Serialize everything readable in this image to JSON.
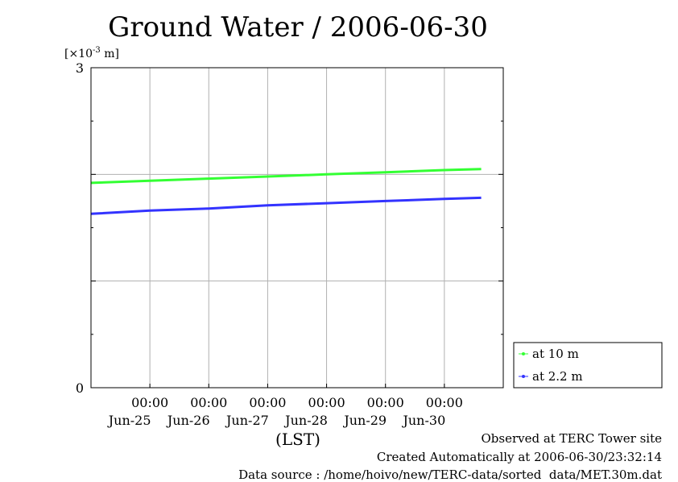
{
  "chart_data": {
    "type": "line",
    "title": "Ground Water / 2006-06-30",
    "unit_label": "[×10-3 m]",
    "unit_prefix": "[×10",
    "unit_exp": "-3",
    "unit_suffix": " m]",
    "xlabel": "(LST)",
    "x_range": [
      "2006-06-24T00:00",
      "2006-07-01T00:00"
    ],
    "ylim": [
      0,
      3
    ],
    "y_ticks": [
      "0",
      "3"
    ],
    "y_gridlines": [
      1,
      2
    ],
    "x_ticks": [
      {
        "time": "2006-06-25T00:00",
        "label_time": "00:00",
        "label_date": "Jun-25"
      },
      {
        "time": "2006-06-26T00:00",
        "label_time": "00:00",
        "label_date": "Jun-26"
      },
      {
        "time": "2006-06-27T00:00",
        "label_time": "00:00",
        "label_date": "Jun-27"
      },
      {
        "time": "2006-06-28T00:00",
        "label_time": "00:00",
        "label_date": "Jun-28"
      },
      {
        "time": "2006-06-29T00:00",
        "label_time": "00:00",
        "label_date": "Jun-29"
      },
      {
        "time": "2006-06-30T00:00",
        "label_time": "00:00",
        "label_date": "Jun-30"
      }
    ],
    "grid": true,
    "legend_position": "bottom-right outside",
    "series": [
      {
        "name": "at 10 m",
        "color": "#33ff33",
        "points": [
          {
            "x": "2006-06-24T00:00",
            "y": 1.92
          },
          {
            "x": "2006-06-25T00:00",
            "y": 1.94
          },
          {
            "x": "2006-06-26T00:00",
            "y": 1.96
          },
          {
            "x": "2006-06-27T00:00",
            "y": 1.98
          },
          {
            "x": "2006-06-28T00:00",
            "y": 2.0
          },
          {
            "x": "2006-06-29T00:00",
            "y": 2.02
          },
          {
            "x": "2006-06-30T00:00",
            "y": 2.04
          },
          {
            "x": "2006-06-30T15:00",
            "y": 2.05
          }
        ]
      },
      {
        "name": "at 2.2 m",
        "color": "#3333ff",
        "points": [
          {
            "x": "2006-06-24T00:00",
            "y": 1.63
          },
          {
            "x": "2006-06-25T00:00",
            "y": 1.66
          },
          {
            "x": "2006-06-26T00:00",
            "y": 1.68
          },
          {
            "x": "2006-06-27T00:00",
            "y": 1.71
          },
          {
            "x": "2006-06-28T00:00",
            "y": 1.73
          },
          {
            "x": "2006-06-29T00:00",
            "y": 1.75
          },
          {
            "x": "2006-06-30T00:00",
            "y": 1.77
          },
          {
            "x": "2006-06-30T15:00",
            "y": 1.78
          }
        ]
      }
    ]
  },
  "footer": {
    "observed": "Observed at TERC Tower site",
    "created": "Created Automatically at 2006-06-30/23:32:14",
    "source": "Data source : /home/hoivo/new/TERC-data/sorted  data/MET.30m.dat"
  }
}
